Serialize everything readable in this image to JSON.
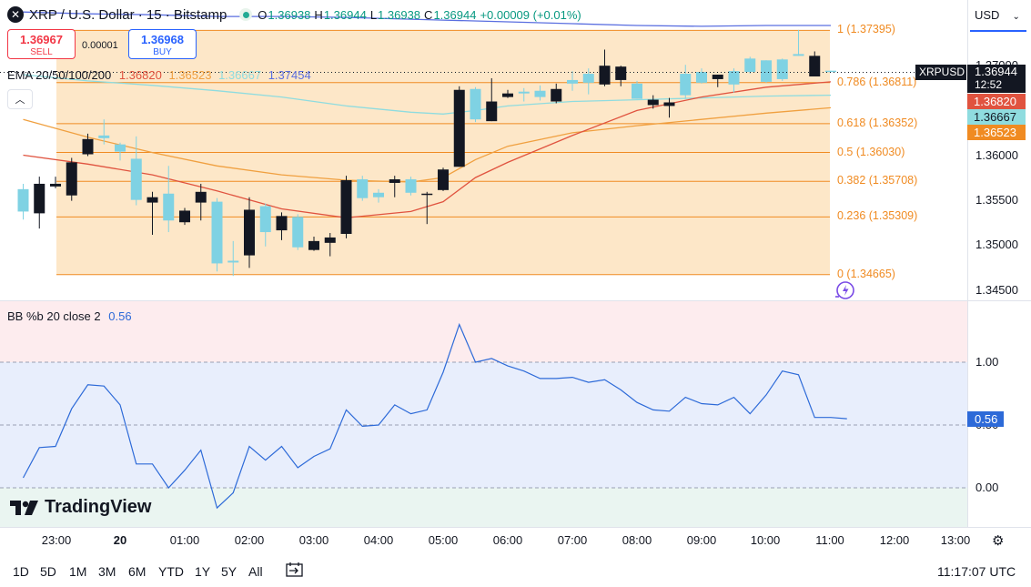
{
  "header": {
    "symbol_icon": "xrp-logo-icon",
    "title": "XRP / U.S. Dollar · 15 · Bitstamp",
    "o_label": "O",
    "o_value": "1.36938",
    "h_label": "H",
    "h_value": "1.36944",
    "l_label": "L",
    "l_value": "1.36938",
    "c_label": "C",
    "c_value": "1.36944",
    "change": "+0.00009 (+0.01%)"
  },
  "trade": {
    "sell_price": "1.36967",
    "sell_label": "SELL",
    "spread": "0.00001",
    "buy_price": "1.36968",
    "buy_label": "BUY"
  },
  "ema": {
    "label": "EMA 20/50/100/200",
    "v20": "1.36820",
    "v50": "1.36523",
    "v100": "1.36667",
    "v200": "1.37454",
    "colors": {
      "ema20": "#e0533f",
      "ema50": "#f0a040",
      "ema100": "#8fdcdf",
      "ema200": "#5b6fe0"
    }
  },
  "bb": {
    "label": "BB %b 20 close 2",
    "value": "0.56",
    "color": "#2d6ad8"
  },
  "currency": "USD",
  "symbol_tag": "XRPUSD",
  "last_price": "1.36944",
  "countdown": "12:52",
  "price_axis_ticks": [
    "1.37000",
    "1.36500",
    "1.36000",
    "1.35500",
    "1.35000",
    "1.34500"
  ],
  "bb_axis_ticks": [
    "1.00",
    "0.50",
    "0.00"
  ],
  "ema_tags": {
    "ema20": "1.36820",
    "ema100": "1.36667",
    "ema50": "1.36523"
  },
  "time_axis": [
    "23:00",
    "20",
    "01:00",
    "02:00",
    "03:00",
    "04:00",
    "05:00",
    "06:00",
    "07:00",
    "08:00",
    "09:00",
    "10:00",
    "11:00",
    "12:00",
    "13:00"
  ],
  "ranges": [
    "1D",
    "5D",
    "1M",
    "3M",
    "6M",
    "YTD",
    "1Y",
    "5Y",
    "All"
  ],
  "clock": "11:17:07 UTC",
  "logo_text": "TradingView",
  "colors": {
    "up": "#7fd2e3",
    "down": "#131722",
    "fib": "#f08b22",
    "fib_fill": "#fde7c8"
  },
  "chart_data": [
    {
      "type": "candlestick",
      "title": "XRP / U.S. Dollar · 15 · Bitstamp",
      "ylim": [
        1.343,
        1.38
      ],
      "fibonacci": [
        {
          "level": "1",
          "price": 1.37395
        },
        {
          "level": "0.786",
          "price": 1.36811
        },
        {
          "level": "0.618",
          "price": 1.36352
        },
        {
          "level": "0.5",
          "price": 1.3603
        },
        {
          "level": "0.382",
          "price": 1.35708
        },
        {
          "level": "0.236",
          "price": 1.35309
        },
        {
          "level": "0",
          "price": 1.34665
        }
      ],
      "fib_labels": [
        "1 (1.37395)",
        "0.786 (1.36811)",
        "0.618 (1.36352)",
        "0.5 (1.36030)",
        "0.382 (1.35708)",
        "0.236 (1.35309)",
        "0 (1.34665)"
      ],
      "candles": [
        {
          "t": "22:30",
          "o": 1.3537,
          "h": 1.3568,
          "l": 1.3528,
          "c": 1.3562
        },
        {
          "t": "22:45",
          "o": 1.3568,
          "h": 1.3576,
          "l": 1.3518,
          "c": 1.3535
        },
        {
          "t": "23:00",
          "o": 1.3568,
          "h": 1.3576,
          "l": 1.3563,
          "c": 1.3565
        },
        {
          "t": "23:15",
          "o": 1.3592,
          "h": 1.3597,
          "l": 1.3549,
          "c": 1.3555
        },
        {
          "t": "23:30",
          "o": 1.3618,
          "h": 1.3624,
          "l": 1.3599,
          "c": 1.3601
        },
        {
          "t": "23:45",
          "o": 1.3619,
          "h": 1.364,
          "l": 1.3612,
          "c": 1.3622
        },
        {
          "t": "00:00",
          "o": 1.3604,
          "h": 1.3614,
          "l": 1.3594,
          "c": 1.3612
        },
        {
          "t": "00:15",
          "o": 1.355,
          "h": 1.3621,
          "l": 1.3544,
          "c": 1.3596
        },
        {
          "t": "00:30",
          "o": 1.3553,
          "h": 1.3559,
          "l": 1.3511,
          "c": 1.3547
        },
        {
          "t": "00:45",
          "o": 1.3527,
          "h": 1.3588,
          "l": 1.3514,
          "c": 1.3557
        },
        {
          "t": "01:00",
          "o": 1.3538,
          "h": 1.3541,
          "l": 1.3522,
          "c": 1.3525
        },
        {
          "t": "01:15",
          "o": 1.3559,
          "h": 1.3568,
          "l": 1.3527,
          "c": 1.3547
        },
        {
          "t": "01:30",
          "o": 1.3479,
          "h": 1.3552,
          "l": 1.347,
          "c": 1.3548
        },
        {
          "t": "01:45",
          "o": 1.348,
          "h": 1.3504,
          "l": 1.3465,
          "c": 1.3482
        },
        {
          "t": "02:00",
          "o": 1.3539,
          "h": 1.3553,
          "l": 1.3474,
          "c": 1.3488
        },
        {
          "t": "02:15",
          "o": 1.3514,
          "h": 1.3546,
          "l": 1.3498,
          "c": 1.3543
        },
        {
          "t": "02:30",
          "o": 1.3532,
          "h": 1.3536,
          "l": 1.3505,
          "c": 1.3516
        },
        {
          "t": "02:45",
          "o": 1.3497,
          "h": 1.3534,
          "l": 1.3494,
          "c": 1.3531
        },
        {
          "t": "03:00",
          "o": 1.3504,
          "h": 1.3509,
          "l": 1.3493,
          "c": 1.3494
        },
        {
          "t": "03:15",
          "o": 1.3508,
          "h": 1.3513,
          "l": 1.3487,
          "c": 1.3502
        },
        {
          "t": "03:30",
          "o": 1.3572,
          "h": 1.3577,
          "l": 1.3507,
          "c": 1.3512
        },
        {
          "t": "03:45",
          "o": 1.3552,
          "h": 1.3577,
          "l": 1.3549,
          "c": 1.3573
        },
        {
          "t": "04:00",
          "o": 1.3553,
          "h": 1.3562,
          "l": 1.3547,
          "c": 1.3558
        },
        {
          "t": "04:15",
          "o": 1.3573,
          "h": 1.3577,
          "l": 1.3553,
          "c": 1.3569
        },
        {
          "t": "04:30",
          "o": 1.3558,
          "h": 1.3576,
          "l": 1.3555,
          "c": 1.3573
        },
        {
          "t": "04:45",
          "o": 1.3557,
          "h": 1.3559,
          "l": 1.3523,
          "c": 1.3556
        },
        {
          "t": "05:00",
          "o": 1.3584,
          "h": 1.3586,
          "l": 1.356,
          "c": 1.3561
        },
        {
          "t": "05:15",
          "o": 1.3673,
          "h": 1.3677,
          "l": 1.3587,
          "c": 1.3587
        },
        {
          "t": "05:30",
          "o": 1.364,
          "h": 1.3676,
          "l": 1.3637,
          "c": 1.3674
        },
        {
          "t": "05:45",
          "o": 1.366,
          "h": 1.3686,
          "l": 1.3638,
          "c": 1.3638
        },
        {
          "t": "06:00",
          "o": 1.3669,
          "h": 1.3673,
          "l": 1.3664,
          "c": 1.3665
        },
        {
          "t": "06:15",
          "o": 1.3669,
          "h": 1.3675,
          "l": 1.366,
          "c": 1.3671
        },
        {
          "t": "06:30",
          "o": 1.3665,
          "h": 1.3678,
          "l": 1.3661,
          "c": 1.3672
        },
        {
          "t": "06:45",
          "o": 1.3674,
          "h": 1.368,
          "l": 1.3658,
          "c": 1.366
        },
        {
          "t": "07:00",
          "o": 1.368,
          "h": 1.3694,
          "l": 1.3672,
          "c": 1.3684
        },
        {
          "t": "07:15",
          "o": 1.3681,
          "h": 1.3697,
          "l": 1.3668,
          "c": 1.3691
        },
        {
          "t": "07:30",
          "o": 1.37,
          "h": 1.3718,
          "l": 1.3677,
          "c": 1.3679
        },
        {
          "t": "07:45",
          "o": 1.3699,
          "h": 1.37,
          "l": 1.3677,
          "c": 1.3684
        },
        {
          "t": "08:00",
          "o": 1.3663,
          "h": 1.3683,
          "l": 1.3663,
          "c": 1.368
        },
        {
          "t": "08:15",
          "o": 1.3662,
          "h": 1.3667,
          "l": 1.3652,
          "c": 1.3656
        },
        {
          "t": "08:30",
          "o": 1.3659,
          "h": 1.3664,
          "l": 1.3642,
          "c": 1.3655
        },
        {
          "t": "08:45",
          "o": 1.3667,
          "h": 1.3701,
          "l": 1.3663,
          "c": 1.3691
        },
        {
          "t": "09:00",
          "o": 1.3681,
          "h": 1.3697,
          "l": 1.368,
          "c": 1.3693
        },
        {
          "t": "09:15",
          "o": 1.369,
          "h": 1.369,
          "l": 1.3676,
          "c": 1.3685
        },
        {
          "t": "09:30",
          "o": 1.3679,
          "h": 1.3697,
          "l": 1.367,
          "c": 1.3694
        },
        {
          "t": "09:45",
          "o": 1.3693,
          "h": 1.371,
          "l": 1.3691,
          "c": 1.3708
        },
        {
          "t": "10:00",
          "o": 1.3682,
          "h": 1.3706,
          "l": 1.3681,
          "c": 1.3706
        },
        {
          "t": "10:15",
          "o": 1.3685,
          "h": 1.3708,
          "l": 1.3683,
          "c": 1.3707
        },
        {
          "t": "10:30",
          "o": 1.3711,
          "h": 1.374,
          "l": 1.3711,
          "c": 1.3713
        },
        {
          "t": "10:45",
          "o": 1.3711,
          "h": 1.3716,
          "l": 1.3688,
          "c": 1.3688
        },
        {
          "t": "11:00",
          "o": 1.36938,
          "h": 1.36944,
          "l": 1.36938,
          "c": 1.36944
        }
      ],
      "ema20": [
        [
          22.5,
          1.36
        ],
        [
          23.5,
          1.359
        ],
        [
          0.5,
          1.3578
        ],
        [
          1.5,
          1.356
        ],
        [
          2.5,
          1.354
        ],
        [
          3.5,
          1.353
        ],
        [
          4.5,
          1.3537
        ],
        [
          5.0,
          1.3548
        ],
        [
          5.5,
          1.3575
        ],
        [
          6.0,
          1.3592
        ],
        [
          7.0,
          1.3622
        ],
        [
          8.0,
          1.365
        ],
        [
          9.0,
          1.3665
        ],
        [
          10.0,
          1.3676
        ],
        [
          11.0,
          1.3682
        ]
      ],
      "ema50": [
        [
          22.5,
          1.364
        ],
        [
          23.5,
          1.362
        ],
        [
          0.5,
          1.3603
        ],
        [
          1.5,
          1.3588
        ],
        [
          2.5,
          1.3578
        ],
        [
          3.5,
          1.3572
        ],
        [
          4.5,
          1.357
        ],
        [
          5.0,
          1.3575
        ],
        [
          5.5,
          1.3595
        ],
        [
          6.0,
          1.361
        ],
        [
          7.0,
          1.3625
        ],
        [
          8.0,
          1.3633
        ],
        [
          9.0,
          1.364
        ],
        [
          10.0,
          1.3647
        ],
        [
          11.0,
          1.3653
        ]
      ],
      "ema100": [
        [
          22.5,
          1.369
        ],
        [
          23.5,
          1.3683
        ],
        [
          0.5,
          1.3678
        ],
        [
          1.5,
          1.3672
        ],
        [
          2.5,
          1.3665
        ],
        [
          3.5,
          1.3655
        ],
        [
          4.5,
          1.3648
        ],
        [
          5.0,
          1.3646
        ],
        [
          5.5,
          1.365
        ],
        [
          6.0,
          1.3655
        ],
        [
          7.0,
          1.366
        ],
        [
          8.0,
          1.3662
        ],
        [
          9.0,
          1.3664
        ],
        [
          10.0,
          1.3666
        ],
        [
          11.0,
          1.3667
        ]
      ],
      "ema200": [
        [
          22.5,
          1.376
        ],
        [
          23.5,
          1.3758
        ],
        [
          0.5,
          1.3757
        ],
        [
          1.5,
          1.3755
        ],
        [
          2.5,
          1.3755
        ],
        [
          3.5,
          1.3754
        ],
        [
          4.5,
          1.3752
        ],
        [
          5.0,
          1.3751
        ],
        [
          6.0,
          1.3749
        ],
        [
          7.0,
          1.3747
        ],
        [
          8.0,
          1.3745
        ],
        [
          9.0,
          1.3744
        ],
        [
          10.0,
          1.3745
        ],
        [
          11.0,
          1.3745
        ]
      ]
    },
    {
      "type": "line",
      "title": "BB %b 20 close 2",
      "ylim": [
        -0.25,
        1.55
      ],
      "bands": {
        "upper": 1.0,
        "middle": 0.5,
        "lower": 0.0
      },
      "x": [
        22.5,
        22.75,
        23.0,
        23.25,
        23.5,
        23.75,
        0.0,
        0.25,
        0.5,
        0.75,
        1.0,
        1.25,
        1.5,
        1.75,
        2.0,
        2.25,
        2.5,
        2.75,
        3.0,
        3.25,
        3.5,
        3.75,
        4.0,
        4.25,
        4.5,
        4.75,
        5.0,
        5.25,
        5.5,
        5.75,
        6.0,
        6.25,
        6.5,
        6.75,
        7.0,
        7.25,
        7.5,
        7.75,
        8.0,
        8.25,
        8.5,
        8.75,
        9.0,
        9.25,
        9.5,
        9.75,
        10.0,
        10.25,
        10.5,
        10.75,
        11.0,
        11.25
      ],
      "values": [
        0.08,
        0.32,
        0.33,
        0.63,
        0.82,
        0.81,
        0.66,
        0.19,
        0.19,
        0.0,
        0.14,
        0.3,
        -0.16,
        -0.04,
        0.33,
        0.22,
        0.33,
        0.16,
        0.25,
        0.31,
        0.62,
        0.49,
        0.5,
        0.66,
        0.59,
        0.62,
        0.92,
        1.3,
        1.0,
        1.03,
        0.97,
        0.93,
        0.87,
        0.87,
        0.88,
        0.84,
        0.86,
        0.78,
        0.68,
        0.62,
        0.61,
        0.72,
        0.67,
        0.66,
        0.72,
        0.59,
        0.74,
        0.93,
        0.9,
        0.56,
        0.56,
        0.55
      ],
      "last_value": 0.56
    }
  ]
}
